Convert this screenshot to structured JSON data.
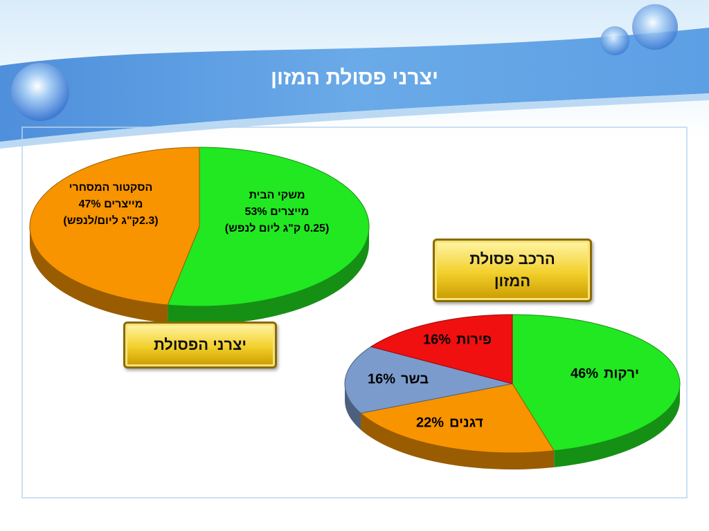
{
  "title": "יצרני פסולת המזון",
  "chart_data": [
    {
      "type": "pie",
      "title": "יצרני הפסולת",
      "categories": [
        "משקי הבית",
        "הסקטור המסחרי"
      ],
      "values": [
        53,
        47
      ],
      "value_labels": [
        "מייצרים 53%",
        "מייצרים 47%"
      ],
      "annotations": [
        "(0.25 ק\"ג ליום לנפש)",
        "(2.3ק\"ג ליום/לנפש)"
      ],
      "colors": [
        "#22e822",
        "#f79400"
      ]
    },
    {
      "type": "pie",
      "title": "הרכב פסולת המזון",
      "categories": [
        "ירקות",
        "דגנים",
        "בשר",
        "פירות"
      ],
      "values": [
        46,
        22,
        16,
        16
      ],
      "value_labels": [
        "46%",
        "22%",
        "16%",
        "16%"
      ],
      "colors": [
        "#22e822",
        "#f79400",
        "#7b9bcc",
        "#f01010"
      ]
    }
  ]
}
